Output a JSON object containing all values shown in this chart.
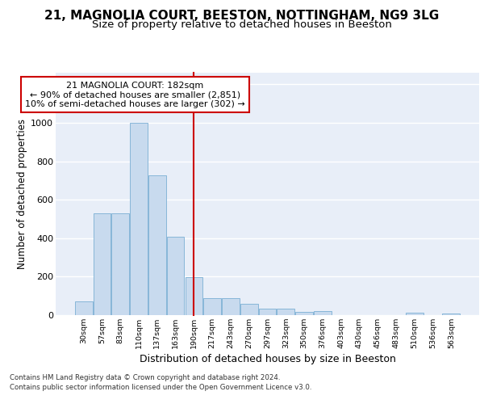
{
  "title1": "21, MAGNOLIA COURT, BEESTON, NOTTINGHAM, NG9 3LG",
  "title2": "Size of property relative to detached houses in Beeston",
  "xlabel": "Distribution of detached houses by size in Beeston",
  "ylabel": "Number of detached properties",
  "footer1": "Contains HM Land Registry data © Crown copyright and database right 2024.",
  "footer2": "Contains public sector information licensed under the Open Government Licence v3.0.",
  "bar_labels": [
    "30sqm",
    "57sqm",
    "83sqm",
    "110sqm",
    "137sqm",
    "163sqm",
    "190sqm",
    "217sqm",
    "243sqm",
    "270sqm",
    "297sqm",
    "323sqm",
    "350sqm",
    "376sqm",
    "403sqm",
    "430sqm",
    "456sqm",
    "483sqm",
    "510sqm",
    "536sqm",
    "563sqm"
  ],
  "bar_values": [
    70,
    528,
    528,
    1000,
    725,
    408,
    198,
    90,
    90,
    58,
    35,
    32,
    18,
    20,
    0,
    0,
    0,
    0,
    12,
    0,
    8
  ],
  "bar_color": "#c8daee",
  "bar_edge_color": "#7aafd4",
  "vline_x": 6,
  "vline_color": "#cc0000",
  "annotation_text": "21 MAGNOLIA COURT: 182sqm\n← 90% of detached houses are smaller (2,851)\n10% of semi-detached houses are larger (302) →",
  "annotation_box_color": "#ffffff",
  "annotation_box_edge": "#cc0000",
  "ylim": [
    0,
    1260
  ],
  "yticks": [
    0,
    200,
    400,
    600,
    800,
    1000,
    1200
  ],
  "bg_color": "#ffffff",
  "plot_bg": "#e8eef8",
  "grid_color": "#ffffff",
  "title1_fontsize": 11,
  "title2_fontsize": 9.5,
  "xlabel_fontsize": 9,
  "ylabel_fontsize": 8.5
}
